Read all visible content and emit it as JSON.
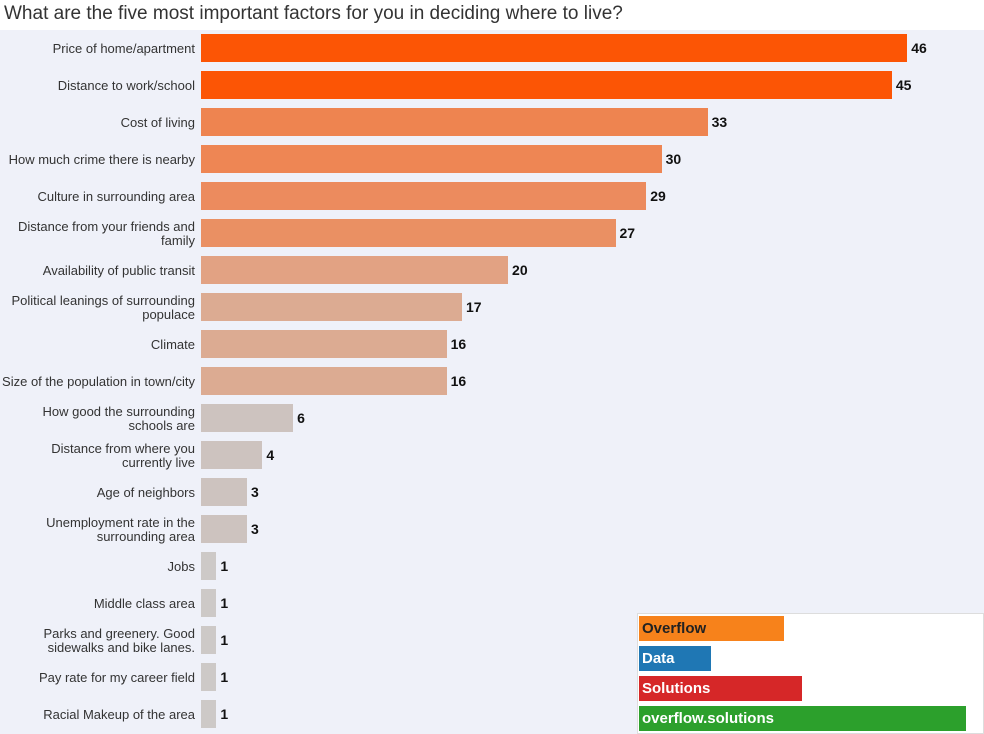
{
  "chart_data": {
    "type": "bar",
    "orientation": "horizontal",
    "title": "What are the five most important factors for you in deciding where to live?",
    "categories": [
      "Price of home/apartment",
      "Distance to work/school",
      "Cost of living",
      "How much crime there is nearby",
      "Culture in surrounding area",
      "Distance from your friends and family",
      "Availability of public transit",
      "Political leanings of surrounding populace",
      "Climate",
      "Size of the population in town/city",
      "How good the surrounding schools are",
      "Distance from where you currently live",
      "Age of neighbors",
      "Unemployment rate in the surrounding area",
      "Jobs",
      "Middle class area",
      "Parks and greenery. Good sidewalks and bike lanes.",
      "Pay rate for my career field",
      "Racial Makeup of the area"
    ],
    "values": [
      46,
      45,
      33,
      30,
      29,
      27,
      20,
      17,
      16,
      16,
      6,
      4,
      3,
      3,
      1,
      1,
      1,
      1,
      1
    ],
    "colors": [
      "#fc5505",
      "#fc5505",
      "#ee8450",
      "#ee8654",
      "#ec8b5e",
      "#ea9063",
      "#e2a283",
      "#dcab92",
      "#dcab92",
      "#dcab92",
      "#cdc3bf",
      "#cdc3bf",
      "#cdc3bf",
      "#cdc3bf",
      "#cdc9c7",
      "#cdc9c7",
      "#cdc9c7",
      "#cdc9c7",
      "#cdc9c7"
    ],
    "xlim": [
      0,
      51
    ]
  },
  "watermark": [
    {
      "text": "Overflow",
      "color": "#f7821b"
    },
    {
      "text": "Data",
      "color": "#1f77b4"
    },
    {
      "text": "Solutions",
      "color": "#d62728"
    },
    {
      "text": "overflow.solutions",
      "color": "#2ca02c"
    }
  ]
}
